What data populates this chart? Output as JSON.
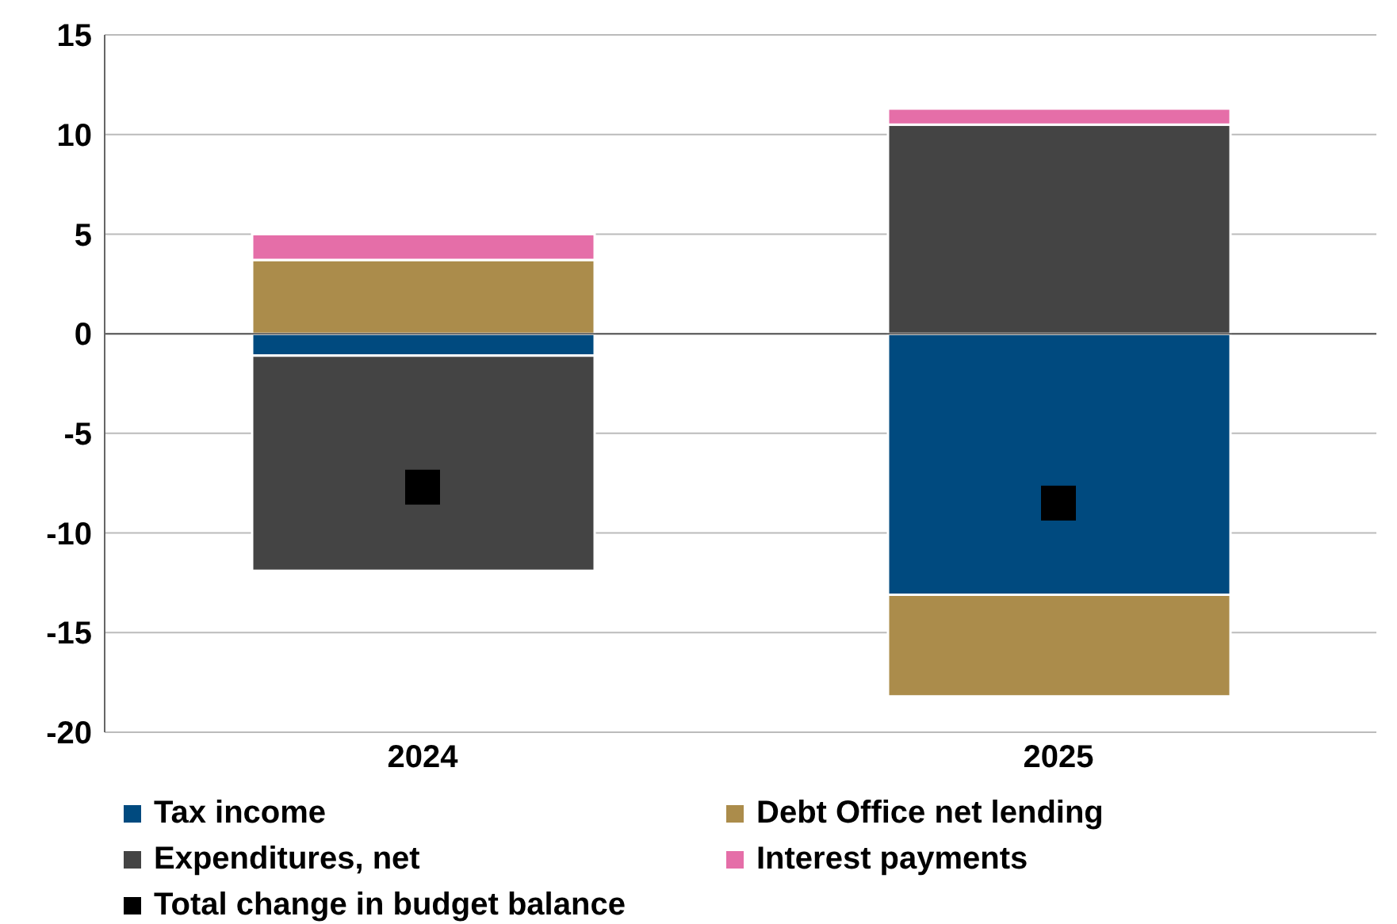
{
  "chart_data": {
    "type": "bar",
    "stacked": true,
    "categories": [
      "2024",
      "2025"
    ],
    "series": [
      {
        "name": "Tax income",
        "color": "#004a7f",
        "values": [
          -1.1,
          -13.1
        ]
      },
      {
        "name": "Debt Office net lending",
        "color": "#ab8c4b",
        "values": [
          3.7,
          -5.1
        ]
      },
      {
        "name": "Expenditures, net",
        "color": "#444444",
        "values": [
          -10.8,
          10.5
        ]
      },
      {
        "name": "Interest payments",
        "color": "#e56ea8",
        "values": [
          1.3,
          0.8
        ]
      },
      {
        "name": "Total change in budget balance",
        "type": "scatter",
        "color": "#000000",
        "marker": "square",
        "values": [
          -7.7,
          -8.5
        ]
      }
    ],
    "ylim": [
      -20,
      15
    ],
    "yticks": [
      -20,
      -15,
      -10,
      -5,
      0,
      5,
      10,
      15
    ],
    "grid": "y",
    "legend": "bottom"
  }
}
